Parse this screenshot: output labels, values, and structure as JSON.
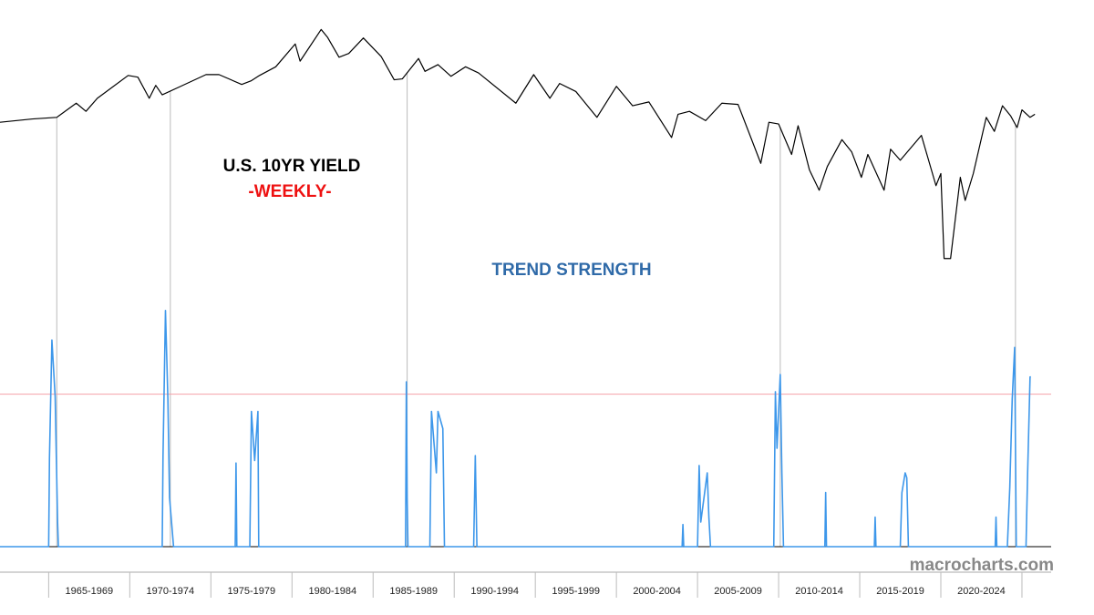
{
  "chart_data": [
    {
      "type": "line",
      "title": "U.S. 10YR YIELD",
      "subtitle": "-WEEKLY-",
      "log_scale": true,
      "x": [
        1962,
        1964,
        1965.5,
        1966.7,
        1967.3,
        1968,
        1969.9,
        1970.5,
        1971.2,
        1971.6,
        1972,
        1973,
        1974.7,
        1975.5,
        1976.9,
        1977.5,
        1978,
        1979,
        1980.2,
        1980.5,
        1981.8,
        1982.2,
        1982.9,
        1983.5,
        1984.4,
        1985.5,
        1986.3,
        1986.8,
        1987.8,
        1988.2,
        1989,
        1989.8,
        1990.7,
        1991.5,
        1993.8,
        1994.9,
        1995.9,
        1996.5,
        1997.5,
        1998.8,
        2000,
        2001,
        2002,
        2003.4,
        2003.8,
        2004.5,
        2005.5,
        2006.5,
        2007.5,
        2008.9,
        2009.4,
        2010,
        2010.8,
        2011.2,
        2011.9,
        2012.5,
        2013,
        2013.9,
        2014.5,
        2015.1,
        2015.5,
        2016.5,
        2016.9,
        2017.5,
        2018.8,
        2019.7,
        2020,
        2020.2,
        2020.6,
        2021.2,
        2021.5,
        2022,
        2022.8,
        2023.3,
        2023.8,
        2024.3,
        2024.7,
        2025,
        2025.5,
        2025.8
      ],
      "series": [
        {
          "name": "U.S. 10YR YIELD",
          "color": "#000000",
          "values": [
            3.9,
            4.1,
            4.2,
            5.2,
            4.6,
            5.6,
            7.9,
            7.7,
            5.6,
            6.8,
            5.9,
            6.6,
            8.0,
            8.0,
            6.9,
            7.3,
            7.9,
            9.0,
            12.7,
            9.8,
            15.8,
            14.0,
            10.4,
            11.0,
            13.9,
            10.5,
            7.4,
            7.5,
            10.2,
            8.4,
            9.3,
            7.8,
            9.0,
            8.2,
            5.2,
            8.0,
            5.6,
            7.0,
            6.2,
            4.2,
            6.7,
            5.0,
            5.3,
            3.1,
            4.4,
            4.6,
            4.0,
            5.2,
            5.1,
            2.1,
            3.9,
            3.8,
            2.4,
            3.7,
            1.9,
            1.4,
            2.0,
            3.0,
            2.5,
            1.7,
            2.4,
            1.4,
            2.6,
            2.2,
            3.2,
            1.5,
            1.8,
            0.5,
            0.5,
            1.7,
            1.2,
            1.8,
            4.2,
            3.4,
            5.0,
            4.3,
            3.6,
            4.7,
            4.2,
            4.4
          ]
        }
      ],
      "xlim": [
        1962,
        2026.8
      ],
      "ylim": [
        0.4,
        17
      ],
      "signal_x": [
        1965.5,
        1972.5,
        1987.1,
        2010.1,
        2024.6
      ]
    },
    {
      "type": "line",
      "title": "TREND STRENGTH",
      "x": [
        1962,
        1965.0,
        1965.05,
        1965.2,
        1965.4,
        1965.55,
        1965.6,
        1972.0,
        1972.05,
        1972.2,
        1972.35,
        1972.45,
        1972.7,
        1976.5,
        1976.55,
        1976.6,
        1977.4,
        1977.5,
        1977.7,
        1977.9,
        1977.95,
        1987.0,
        1987.05,
        1987.1,
        1987.15,
        1988.5,
        1988.6,
        1988.9,
        1989.0,
        1989.3,
        1989.4,
        1991.2,
        1991.3,
        1991.4,
        2004.05,
        2004.1,
        2004.15,
        2005.0,
        2005.1,
        2005.2,
        2005.6,
        2005.7,
        2005.8,
        2009.7,
        2009.8,
        2009.9,
        2010.1,
        2010.2,
        2010.3,
        2012.85,
        2012.9,
        2012.95,
        2015.9,
        2015.95,
        2016.0,
        2017.5,
        2017.6,
        2017.8,
        2017.9,
        2018.0,
        2023.35,
        2023.4,
        2023.45,
        2024.1,
        2024.25,
        2024.4,
        2024.55,
        2024.65,
        2025.25,
        2025.35,
        2025.5,
        2025.55
      ],
      "series": [
        {
          "name": "TREND STRENGTH",
          "color": "#3d97ea",
          "values": [
            0,
            0,
            -36,
            -84,
            -61,
            -10,
            0,
            0,
            -37,
            -96,
            -60,
            -20,
            0,
            0,
            -34,
            0,
            0,
            -55,
            -35,
            -55,
            0,
            0,
            -67,
            -20,
            0,
            0,
            -55,
            -30,
            -55,
            -48,
            0,
            0,
            -37,
            0,
            0,
            -9,
            0,
            0,
            -33,
            -10,
            -30,
            -12,
            0,
            0,
            -63,
            -40,
            -70,
            -30,
            0,
            0,
            -22,
            0,
            0,
            -12,
            0,
            0,
            -22,
            -30,
            -28,
            0,
            0,
            -12,
            0,
            0,
            -24,
            -60,
            -81,
            0,
            0,
            -30,
            -69,
            -69
          ]
        }
      ],
      "xlim": [
        1962,
        2026.8
      ],
      "ylim": [
        -100,
        0
      ],
      "reference_line": -62,
      "reference_color": "#f4a0a8",
      "categories": [
        "1965-1969",
        "1970-1974",
        "1975-1979",
        "1980-1984",
        "1985-1989",
        "1990-1994",
        "1995-1999",
        "2000-2004",
        "2005-2009",
        "2010-2014",
        "2015-2019",
        "2020-2024"
      ],
      "xticks": [
        1965,
        1970,
        1975,
        1980,
        1985,
        1990,
        1995,
        2000,
        2005,
        2010,
        2015,
        2020,
        2025
      ]
    }
  ],
  "watermark": "macrocharts.com"
}
